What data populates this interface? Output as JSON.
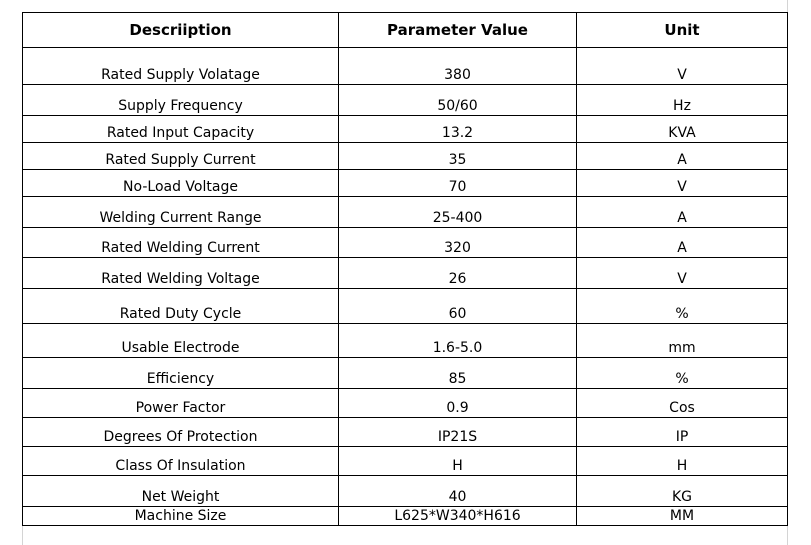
{
  "table": {
    "headers": [
      "Descriiption",
      "Parameter Value",
      "Unit"
    ],
    "rows": [
      [
        "Rated Supply Volatage",
        "380",
        "V"
      ],
      [
        "Supply Frequency",
        "50/60",
        "Hz"
      ],
      [
        "Rated Input Capacity",
        "13.2",
        "KVA"
      ],
      [
        "Rated Supply Current",
        "35",
        "A"
      ],
      [
        "No-Load Voltage",
        "70",
        "V"
      ],
      [
        "Welding Current Range",
        "25-400",
        "A"
      ],
      [
        "Rated Welding Current",
        "320",
        "A"
      ],
      [
        "Rated Welding Voltage",
        "26",
        "V"
      ],
      [
        "Rated Duty Cycle",
        "60",
        "%"
      ],
      [
        "Usable Electrode",
        "1.6-5.0",
        "mm"
      ],
      [
        "Efficiency",
        "85",
        "%"
      ],
      [
        "Power Factor",
        "0.9",
        "Cos"
      ],
      [
        "Degrees Of Protection",
        "IP21S",
        "IP"
      ],
      [
        "Class Of Insulation",
        "H",
        "H"
      ],
      [
        "Net Weight",
        "40",
        "KG"
      ],
      [
        "Machine Size",
        "L625*W340*H616",
        "MM"
      ]
    ]
  }
}
